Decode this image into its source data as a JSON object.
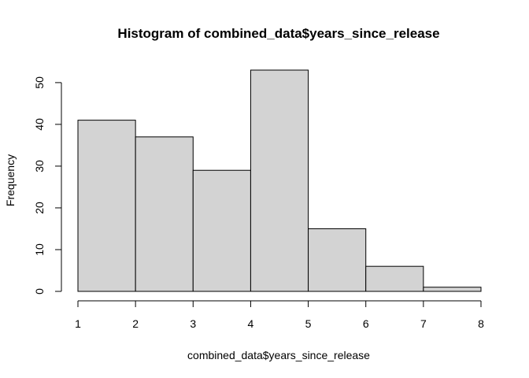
{
  "chart_data": {
    "type": "bar",
    "title": "Histogram of combined_data$years_since_release",
    "xlabel": "combined_data$years_since_release",
    "ylabel": "Frequency",
    "bins": [
      {
        "start": 1,
        "end": 2,
        "count": 41
      },
      {
        "start": 2,
        "end": 3,
        "count": 37
      },
      {
        "start": 3,
        "end": 4,
        "count": 29
      },
      {
        "start": 4,
        "end": 5,
        "count": 53
      },
      {
        "start": 5,
        "end": 6,
        "count": 15
      },
      {
        "start": 6,
        "end": 7,
        "count": 6
      },
      {
        "start": 7,
        "end": 8,
        "count": 1
      }
    ],
    "xlim": [
      1,
      8
    ],
    "ylim": [
      0,
      53
    ],
    "x_ticks": [
      1,
      2,
      3,
      4,
      5,
      6,
      7,
      8
    ],
    "y_ticks": [
      0,
      10,
      20,
      30,
      40,
      50
    ],
    "bar_fill": "#d3d3d3",
    "bar_stroke": "#000000",
    "grid": false,
    "legend": "none"
  }
}
